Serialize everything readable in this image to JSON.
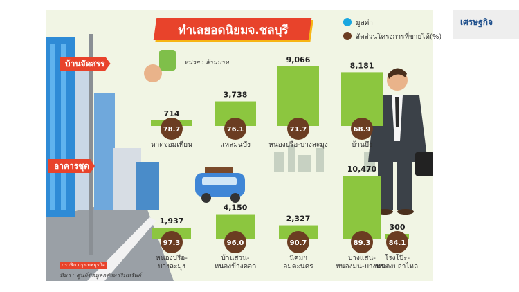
{
  "title": "ทำเลยอดนิยมจ.ชลบุรี",
  "legend": {
    "value_label": "มูลค่า",
    "share_label": "สัดส่วนโครงการที่ขายได้(%)",
    "value_color": "#1aa7e0",
    "share_color": "#6b3d22"
  },
  "unit": "หน่วย : ล้านบาท",
  "source_tag": "กราฟิก กรุงเทพธุรกิจ",
  "source": "ที่มา : ศูนย์ข้อมูลอสังหาริมทรัพย์",
  "side_tag": "เศรษฐกิจ",
  "colors": {
    "bar": "#8cc63f",
    "circle": "#6b3d22",
    "accent": "#e8432b"
  },
  "chart_data": [
    {
      "type": "bar",
      "title": "บ้านจัดสรร",
      "categories": [
        "หาดจอมเทียน",
        "แหลมฉบัง",
        "หนองปรือ-บางละมุง",
        "บ้านบึง"
      ],
      "series": [
        {
          "name": "มูลค่า",
          "values": [
            714,
            3738,
            9066,
            8181
          ]
        },
        {
          "name": "สัดส่วนโครงการที่ขายได้(%)",
          "values": [
            78.7,
            76.1,
            71.7,
            68.9
          ]
        }
      ],
      "value_labels": [
        "714",
        "3,738",
        "9,066",
        "8,181"
      ],
      "share_labels": [
        "78.7",
        "76.1",
        "71.7",
        "68.9"
      ]
    },
    {
      "type": "bar",
      "title": "อาคารชุด",
      "categories": [
        "หนองปรือ-บางละมุง",
        "บ้านสวน-หนองข้างคอก",
        "นิคมฯ อมตะนคร",
        "บางแสน-หนองมน-บางพระ",
        "โรงโป๊ะ-หนองปลาไหล"
      ],
      "series": [
        {
          "name": "มูลค่า",
          "values": [
            1937,
            4150,
            2327,
            10470,
            300
          ]
        },
        {
          "name": "สัดส่วนโครงการที่ขายได้(%)",
          "values": [
            97.3,
            96.0,
            90.7,
            89.3,
            84.1
          ]
        }
      ],
      "value_labels": [
        "1,937",
        "4,150",
        "2,327",
        "10,470",
        "300"
      ],
      "share_labels": [
        "97.3",
        "96.0",
        "90.7",
        "89.3",
        "84.1"
      ]
    }
  ]
}
